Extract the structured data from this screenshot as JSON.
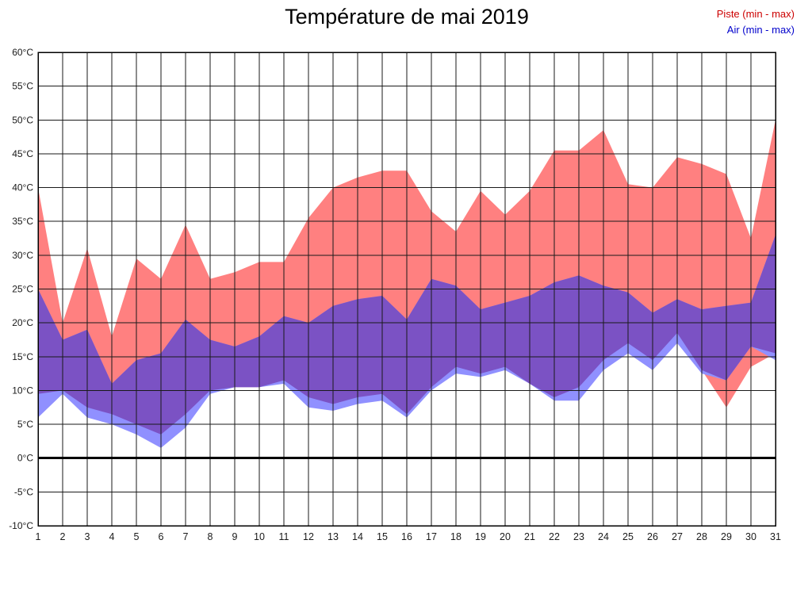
{
  "title": "Température de mai 2019",
  "legend": {
    "piste": "Piste (min - max)",
    "air": "Air (min - max)"
  },
  "colors": {
    "piste_fill": "#ff8080",
    "air_fill": "#9090ff",
    "overlap_fill": "#7b52c4",
    "piste_text": "#cc0000",
    "air_text": "#0000cc",
    "grid": "#1a1a1a",
    "border": "#000000",
    "zero_line": "#000000",
    "tick_text": "#1a1a1a"
  },
  "chart_data": {
    "type": "area",
    "title": "Température de mai 2019",
    "x": [
      1,
      2,
      3,
      4,
      5,
      6,
      7,
      8,
      9,
      10,
      11,
      12,
      13,
      14,
      15,
      16,
      17,
      18,
      19,
      20,
      21,
      22,
      23,
      24,
      25,
      26,
      27,
      28,
      29,
      30,
      31
    ],
    "series": [
      {
        "name": "Piste max",
        "values": [
          40,
          20,
          31,
          18,
          29.5,
          26.5,
          34.5,
          26.5,
          27.5,
          29,
          29,
          35.5,
          40,
          41.5,
          42.5,
          42.5,
          36.5,
          33.5,
          39.5,
          36,
          39.5,
          45.5,
          45.5,
          48.5,
          40.5,
          40,
          44.5,
          43.5,
          42,
          32.5,
          50
        ]
      },
      {
        "name": "Piste min",
        "values": [
          9.5,
          10,
          7.5,
          6.5,
          5,
          3.5,
          6.5,
          10,
          10.5,
          10.5,
          11.5,
          9,
          8,
          9,
          9.5,
          6.5,
          10.5,
          13.5,
          12.5,
          13.5,
          11,
          9,
          10.5,
          14.5,
          17,
          14.5,
          18.5,
          13,
          7.5,
          13.5,
          15.5
        ]
      },
      {
        "name": "Air max",
        "values": [
          25,
          17.5,
          19,
          11,
          14.5,
          15.5,
          20.5,
          17.5,
          16.5,
          18,
          21,
          20,
          22.5,
          23.5,
          24,
          20.5,
          26.5,
          25.5,
          22,
          23,
          24,
          26,
          27,
          25.5,
          24.5,
          21.5,
          23.5,
          22,
          22.5,
          23,
          33
        ]
      },
      {
        "name": "Air min",
        "values": [
          6,
          9.5,
          6,
          5,
          3.5,
          1.5,
          4.5,
          9.5,
          10.5,
          10.5,
          11,
          7.5,
          7,
          8,
          8.5,
          6,
          10,
          12.5,
          12,
          13,
          11,
          8.5,
          8.5,
          13,
          15.5,
          13,
          17,
          12.5,
          11.5,
          16.5,
          14.5
        ]
      }
    ],
    "xlabel": "",
    "ylabel": "",
    "yunit": "°C",
    "ylim": [
      -10,
      60
    ],
    "ytick_step": 5,
    "grid": true,
    "legend_position": "top-right",
    "legend_entries": [
      "Piste (min - max)",
      "Air (min - max)"
    ]
  }
}
